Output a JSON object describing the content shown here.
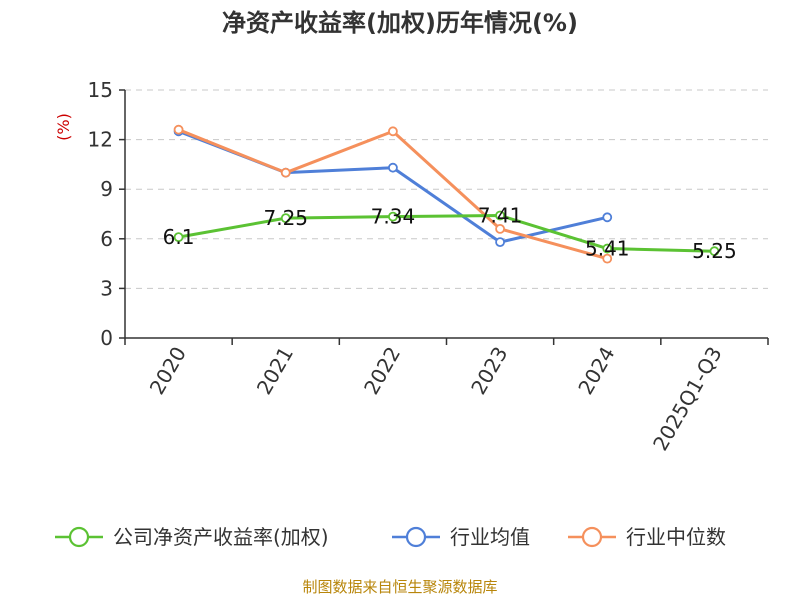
{
  "chart_data": {
    "type": "line",
    "title": "净资产收益率(加权)历年情况(%)",
    "ylabel": "(%)",
    "xlabel": "",
    "categories": [
      "2020",
      "2021",
      "2022",
      "2023",
      "2024",
      "2025Q1-Q3"
    ],
    "yticks": [
      "0",
      "3",
      "6",
      "9",
      "12",
      "15"
    ],
    "ylim": [
      0,
      15
    ],
    "grid": true,
    "legend_position": "bottom",
    "series": [
      {
        "name": "公司净资产收益率(加权)",
        "color": "#5bc233",
        "values": [
          6.1,
          7.25,
          7.34,
          7.41,
          5.41,
          5.25
        ],
        "labels": [
          "6.1",
          "7.25",
          "7.34",
          "7.41",
          "5.41",
          "5.25"
        ]
      },
      {
        "name": "行业均值",
        "color": "#4f7fd8",
        "values": [
          12.5,
          10.0,
          10.3,
          5.8,
          7.3,
          null
        ]
      },
      {
        "name": "行业中位数",
        "color": "#f5905c",
        "values": [
          12.6,
          10.0,
          12.5,
          6.6,
          4.8,
          null
        ]
      }
    ],
    "source": "制图数据来自恒生聚源数据库"
  }
}
